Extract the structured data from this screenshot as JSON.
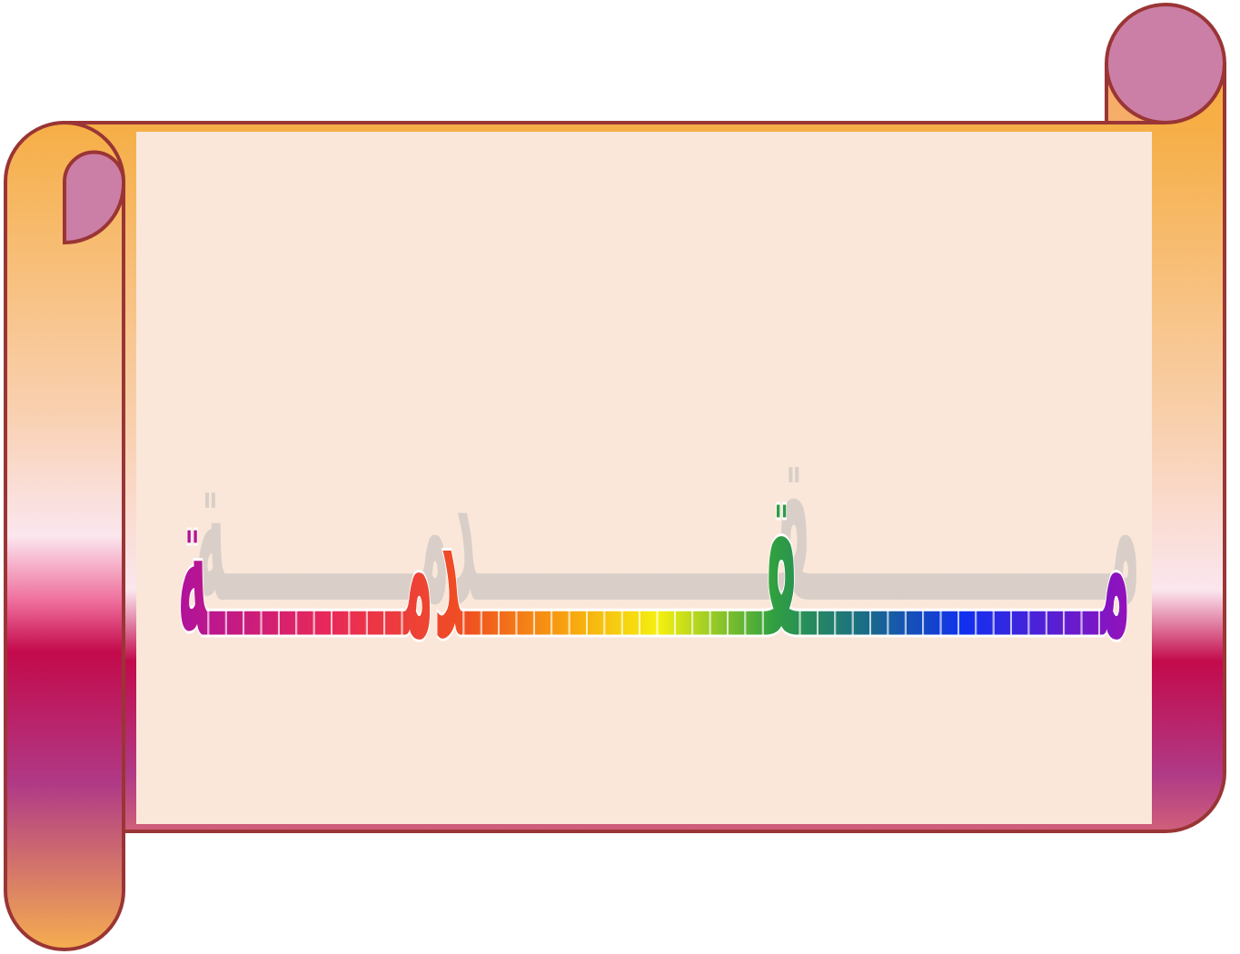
{
  "title": "مـــــــــــــــــقـــــــــــــــــدمـــــــــــة"
}
